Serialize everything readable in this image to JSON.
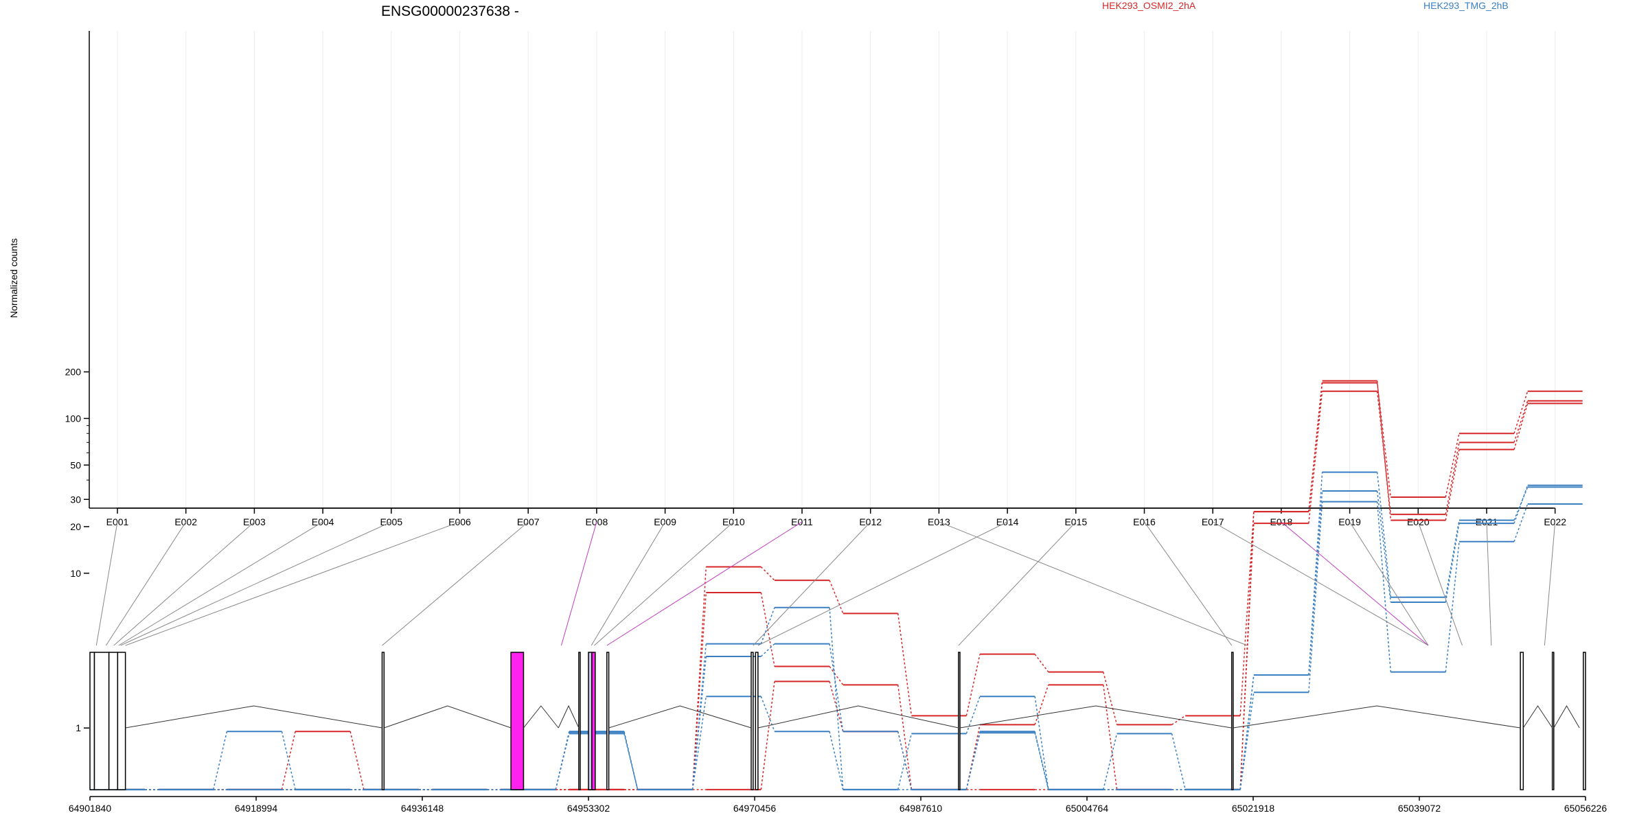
{
  "chart_data": {
    "type": "line",
    "title": "ENSG00000237638 -",
    "ylabel": "Normalized counts",
    "yscale": "log",
    "ylim": [
      0.4,
      220
    ],
    "y_ticks": [
      {
        "value": 1,
        "label": "1"
      },
      {
        "value": 10,
        "label": "10"
      },
      {
        "value": 20,
        "label": "20"
      },
      {
        "value": 30,
        "label": "30"
      },
      {
        "value": 50,
        "label": "50"
      },
      {
        "value": 100,
        "label": "100"
      },
      {
        "value": 200,
        "label": "200"
      }
    ],
    "categories": [
      "E001",
      "E002",
      "E003",
      "E004",
      "E005",
      "E006",
      "E007",
      "E008",
      "E009",
      "E010",
      "E011",
      "E012",
      "E013",
      "E014",
      "E015",
      "E016",
      "E017",
      "E018",
      "E019",
      "E020",
      "E021",
      "E022"
    ],
    "floor_value": 0.4,
    "legend": [
      {
        "label": "HEK293_OSMI2_2hA",
        "color": "#d62728"
      },
      {
        "label": "HEK293_TMG_2hB",
        "color": "#3a7fc2"
      }
    ],
    "series": [
      {
        "group": "HEK293_OSMI2_2hA",
        "values": [
          0.4,
          0.4,
          0.4,
          0.95,
          0.4,
          0.4,
          0.4,
          0.4,
          0.4,
          11,
          9,
          5.5,
          1.2,
          3,
          2.3,
          1.05,
          1.2,
          25,
          170,
          31,
          80,
          150
        ]
      },
      {
        "group": "HEK293_OSMI2_2hA",
        "values": [
          0.4,
          0.4,
          0.4,
          0.4,
          0.4,
          0.4,
          0.4,
          0.4,
          0.4,
          7.5,
          2.5,
          1.9,
          0.4,
          1.05,
          1.9,
          0.4,
          0.4,
          21,
          150,
          24,
          70,
          130
        ]
      },
      {
        "group": "HEK293_OSMI2_2hA",
        "values": [
          0.4,
          0.4,
          0.4,
          0.4,
          0.4,
          0.4,
          0.4,
          0.4,
          0.4,
          0.4,
          2,
          0.95,
          0.4,
          0.4,
          0.4,
          0.4,
          0.4,
          25,
          175,
          22,
          63,
          125
        ]
      },
      {
        "group": "HEK293_TMG_2hB",
        "values": [
          0.4,
          0.4,
          0.95,
          0.4,
          0.4,
          0.4,
          0.4,
          0.95,
          0.4,
          3.5,
          6,
          0.4,
          0.92,
          1.6,
          0.4,
          0.92,
          0.4,
          2.2,
          45,
          7,
          22,
          36
        ]
      },
      {
        "group": "HEK293_TMG_2hB",
        "values": [
          0.4,
          0.4,
          0.4,
          0.4,
          0.4,
          0.4,
          0.4,
          0.92,
          0.4,
          2.9,
          3.5,
          0.95,
          0.4,
          0.95,
          0.4,
          0.4,
          0.4,
          2.2,
          34,
          6.5,
          21,
          37
        ]
      },
      {
        "group": "HEK293_TMG_2hB",
        "values": [
          0.4,
          0.4,
          0.4,
          0.4,
          0.4,
          0.4,
          0.4,
          0.94,
          0.4,
          1.6,
          0.95,
          0.4,
          0.4,
          0.93,
          0.4,
          0.4,
          0.4,
          1.7,
          29,
          2.3,
          16,
          28
        ]
      }
    ],
    "gene_model": {
      "coordinate_ticks": [
        "64901840",
        "64918994",
        "64936148",
        "64953302",
        "64970456",
        "64987610",
        "65004764",
        "65021918",
        "65039072",
        "65056226"
      ],
      "coord_min": 64901840,
      "coord_max": 65056226,
      "exon_genomic_positions": [
        64902500,
        64903500,
        64904300,
        64904800,
        64905000,
        64905500,
        64932000,
        64950500,
        64953600,
        64953900,
        64955200,
        64970300,
        65021300,
        64970800,
        64991500,
        65019700,
        65040000,
        65040000,
        65040000,
        65043500,
        65046500,
        65052000
      ],
      "highlighted_exons": [
        "E008",
        "E011",
        "E018"
      ],
      "exon_blocks": [
        {
          "start": 64901840,
          "end": 64902300,
          "fill": "#ffffff"
        },
        {
          "start": 64902300,
          "end": 64903800,
          "fill": "#ffffff"
        },
        {
          "start": 64903800,
          "end": 64904700,
          "fill": "#ffffff"
        },
        {
          "start": 64904700,
          "end": 64905500,
          "fill": "#ffffff"
        },
        {
          "start": 64932000,
          "end": 64932200,
          "fill": "#ffffff"
        },
        {
          "start": 64945300,
          "end": 64946600,
          "fill": "#ff22ee"
        },
        {
          "start": 64952300,
          "end": 64952450,
          "fill": "#ffffff"
        },
        {
          "start": 64953300,
          "end": 64953650,
          "fill": "#c9c9e8"
        },
        {
          "start": 64953650,
          "end": 64954000,
          "fill": "#ff22ee"
        },
        {
          "start": 64955200,
          "end": 64955400,
          "fill": "#ffffff"
        },
        {
          "start": 64970100,
          "end": 64970300,
          "fill": "#ffffff"
        },
        {
          "start": 64970550,
          "end": 64970800,
          "fill": "#ffffff"
        },
        {
          "start": 64991500,
          "end": 64991650,
          "fill": "#ffffff"
        },
        {
          "start": 65019700,
          "end": 65019850,
          "fill": "#ffffff"
        },
        {
          "start": 65049500,
          "end": 65049800,
          "fill": "#ffffff"
        },
        {
          "start": 65052800,
          "end": 65052950,
          "fill": "#ffffff"
        },
        {
          "start": 65056000,
          "end": 65056226,
          "fill": "#ffffff"
        }
      ],
      "introns": [
        [
          64905500,
          64932000
        ],
        [
          64932200,
          64945300
        ],
        [
          64946600,
          64950200
        ],
        [
          64950200,
          64952300
        ],
        [
          64955400,
          64970100
        ],
        [
          64970800,
          64991500
        ],
        [
          64991650,
          65019700
        ],
        [
          65019850,
          65049500
        ],
        [
          65049800,
          65052800
        ],
        [
          65052950,
          65055600
        ]
      ]
    }
  }
}
